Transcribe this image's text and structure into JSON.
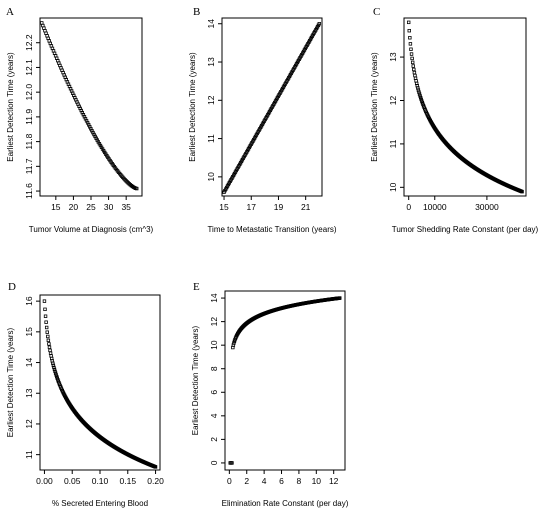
{
  "chart_data": [
    {
      "panel": "A",
      "type": "scatter",
      "xlabel": "Tumor Volume at Diagnosis (cm^3)",
      "ylabel": "Earliest Detection Time (years)",
      "xlim": [
        10.5,
        39.5
      ],
      "ylim": [
        11.58,
        12.3
      ],
      "xticks": [
        15,
        20,
        25,
        30,
        35
      ],
      "yticks": [
        11.6,
        11.7,
        11.8,
        11.9,
        12.0,
        12.1,
        12.2
      ],
      "xticklabels": [
        "15",
        "20",
        "25",
        "30",
        "35"
      ],
      "yticklabels": [
        "11.6",
        "11.7",
        "11.8",
        "11.9",
        "12.0",
        "12.1",
        "12.2"
      ],
      "curve": {
        "kind": "decreasing",
        "x_range": [
          11,
          38
        ],
        "y_start": 12.28,
        "y_end": 11.61,
        "shape": "convex",
        "points": 90
      },
      "grid": false,
      "marker": "open-square"
    },
    {
      "panel": "B",
      "type": "scatter",
      "xlabel": "Time to Metastatic Transition (years)",
      "ylabel": "Earliest Detection Time (years)",
      "xlim": [
        14.85,
        22.2
      ],
      "ylim": [
        9.5,
        14.15
      ],
      "xticks": [
        15,
        17,
        19,
        21
      ],
      "yticks": [
        10,
        11,
        12,
        13,
        14
      ],
      "xticklabels": [
        "15",
        "17",
        "19",
        "21"
      ],
      "yticklabels": [
        "10",
        "11",
        "12",
        "13",
        "14"
      ],
      "curve": {
        "kind": "linear",
        "x_range": [
          15,
          22
        ],
        "y_start": 9.6,
        "y_end": 14.0,
        "points": 110
      },
      "grid": false,
      "marker": "open-square"
    },
    {
      "panel": "C",
      "type": "scatter",
      "xlabel": "Tumor Shedding Rate Constant (per day)",
      "ylabel": "Earliest Detection Time (years)",
      "xlim": [
        -1800,
        45000
      ],
      "ylim": [
        9.8,
        13.9
      ],
      "xticks": [
        0,
        10000,
        30000
      ],
      "yticks": [
        10,
        11,
        12,
        13
      ],
      "xticklabels": [
        "0",
        "10000",
        "30000"
      ],
      "yticklabels": [
        "10",
        "11",
        "12",
        "13"
      ],
      "curve": {
        "kind": "decreasing",
        "x_range": [
          0,
          43500
        ],
        "y_start": 13.8,
        "y_end": 9.9,
        "shape": "log-like",
        "points": 200
      },
      "grid": false,
      "marker": "open-square"
    },
    {
      "panel": "D",
      "type": "scatter",
      "xlabel": "% Secreted Entering Blood",
      "ylabel": "Earliest Detection Time (years)",
      "xlim": [
        -0.008,
        0.208
      ],
      "ylim": [
        10.5,
        16.2
      ],
      "xticks": [
        0.0,
        0.05,
        0.1,
        0.15,
        0.2
      ],
      "yticks": [
        11,
        12,
        13,
        14,
        15,
        16
      ],
      "xticklabels": [
        "0.00",
        "0.05",
        "0.10",
        "0.15",
        "0.20"
      ],
      "yticklabels": [
        "11",
        "12",
        "13",
        "14",
        "15",
        "16"
      ],
      "curve": {
        "kind": "decreasing",
        "x_range": [
          0.0,
          0.2
        ],
        "y_start": 16.0,
        "y_end": 10.6,
        "shape": "log-like",
        "points": 200
      },
      "grid": false,
      "marker": "open-square"
    },
    {
      "panel": "E",
      "type": "scatter",
      "xlabel": "Elimination Rate Constant (per day)",
      "ylabel": "Earliest Detection Time (years)",
      "xlim": [
        -0.5,
        13.3
      ],
      "ylim": [
        -0.6,
        14.6
      ],
      "xticks": [
        0,
        2,
        4,
        6,
        8,
        10,
        12
      ],
      "yticks": [
        0,
        2,
        4,
        6,
        8,
        10,
        12,
        14
      ],
      "xticklabels": [
        "0",
        "2",
        "4",
        "6",
        "8",
        "10",
        "12"
      ],
      "yticklabels": [
        "0",
        "2",
        "4",
        "6",
        "8",
        "10",
        "12",
        "14"
      ],
      "curve": {
        "kind": "increasing",
        "x_range": [
          0.4,
          12.7
        ],
        "y_start": 9.8,
        "y_end": 14.0,
        "shape": "log-like",
        "points": 200
      },
      "extra_points": [
        {
          "x": 0.1,
          "y": 0.0
        },
        {
          "x": 0.2,
          "y": 0.0
        },
        {
          "x": 0.3,
          "y": 0.0
        }
      ],
      "grid": false,
      "marker": "open-square"
    }
  ]
}
